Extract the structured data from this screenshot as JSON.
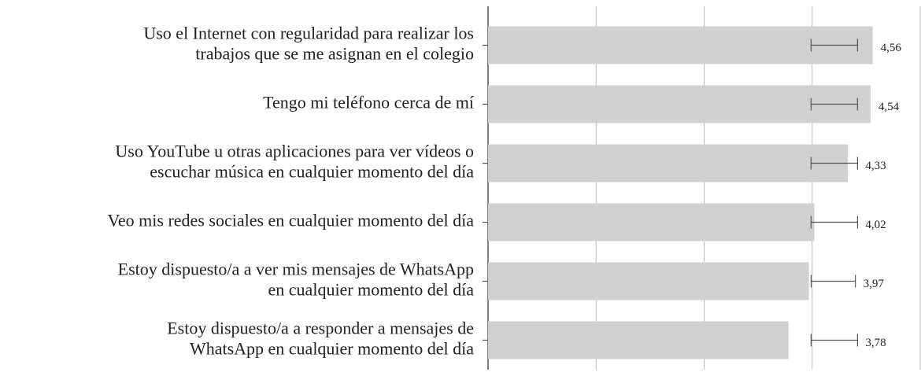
{
  "chart_data": {
    "type": "hbar",
    "categories": [
      "Uso el Internet con regularidad para realizar los\ntrabajos que se me asignan en  el colegio",
      "Tengo mi teléfono cerca de mí",
      "Uso YouTube u otras aplicaciones para ver vídeos o\nescuchar música en cualquier momento del día",
      "Veo mis redes sociales en cualquier momento del día",
      "Estoy dispuesto/a a ver mis mensajes de WhatsApp\nen cualquier momento del día",
      "Estoy dispuesto/a a responder a mensajes de\nWhatsApp en cualquier momento del día"
    ],
    "values": [
      4.56,
      4.54,
      4.33,
      4.02,
      3.97,
      3.78
    ],
    "value_labels": [
      "4,56",
      "4,54",
      "4,33",
      "4,02",
      "3,97",
      "3,78"
    ],
    "error_bars": [
      [
        3.99,
        4.42
      ],
      [
        3.99,
        4.42
      ],
      [
        3.99,
        4.42
      ],
      [
        3.99,
        4.42
      ],
      [
        3.99,
        4.4
      ],
      [
        3.99,
        4.42
      ]
    ],
    "color": "#d0d0d0",
    "xlim": [
      1,
      5
    ],
    "xticks": [
      1,
      2,
      3,
      4,
      5
    ],
    "grid": true
  }
}
